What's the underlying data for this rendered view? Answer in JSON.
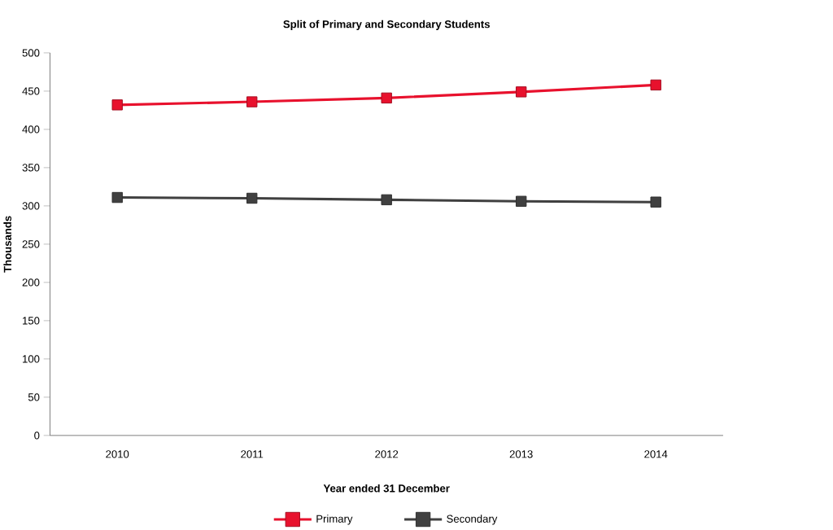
{
  "chart_data": {
    "type": "line",
    "title": "Split of Primary and Secondary Students",
    "xlabel": "Year ended 31 December",
    "ylabel": "Thousands",
    "categories": [
      "2010",
      "2011",
      "2012",
      "2013",
      "2014"
    ],
    "series": [
      {
        "name": "Primary",
        "color": "#e8112d",
        "values": [
          432,
          436,
          441,
          449,
          458
        ]
      },
      {
        "name": "Secondary",
        "color": "#404040",
        "values": [
          311,
          310,
          308,
          306,
          305
        ]
      }
    ],
    "ylim": [
      0,
      500
    ],
    "yticks": [
      0,
      50,
      100,
      150,
      200,
      250,
      300,
      350,
      400,
      450,
      500
    ],
    "grid": false,
    "legend": "bottom",
    "marker": "square",
    "line_style": "solid"
  }
}
